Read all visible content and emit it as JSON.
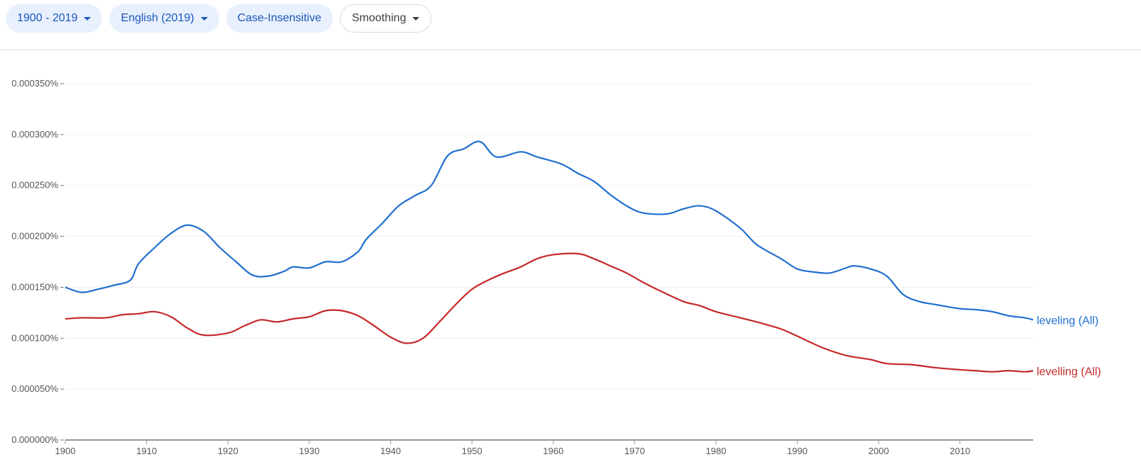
{
  "toolbar": {
    "year_range": "1900 - 2019",
    "corpus": "English (2019)",
    "case": "Case-Insensitive",
    "smoothing": "Smoothing"
  },
  "chart_data": {
    "type": "line",
    "xlabel": "",
    "ylabel": "",
    "xlim": [
      1900,
      2019
    ],
    "ylim": [
      0,
      0.00035
    ],
    "x_ticks": [
      "1900",
      "1910",
      "1920",
      "1930",
      "1940",
      "1950",
      "1960",
      "1970",
      "1980",
      "1990",
      "2000",
      "2010"
    ],
    "y_ticks": [
      "0.000000%",
      "0.000050%",
      "0.000100%",
      "0.000150%",
      "0.000200%",
      "0.000250%",
      "0.000300%",
      "0.000350%"
    ],
    "grid": true,
    "legend": "inline-right",
    "series": [
      {
        "name": "leveling (All)",
        "color": "#1f6fcf",
        "points": [
          [
            1900,
            0.00015
          ],
          [
            1902,
            0.000145
          ],
          [
            1904,
            0.000148
          ],
          [
            1906,
            0.000152
          ],
          [
            1908,
            0.000157
          ],
          [
            1909,
            0.000173
          ],
          [
            1911,
            0.000189
          ],
          [
            1913,
            0.000203
          ],
          [
            1915,
            0.000211
          ],
          [
            1917,
            0.000205
          ],
          [
            1919,
            0.000189
          ],
          [
            1921,
            0.000175
          ],
          [
            1923,
            0.000162
          ],
          [
            1925,
            0.000161
          ],
          [
            1927,
            0.000166
          ],
          [
            1928,
            0.00017
          ],
          [
            1930,
            0.000169
          ],
          [
            1932,
            0.000175
          ],
          [
            1934,
            0.000175
          ],
          [
            1936,
            0.000185
          ],
          [
            1937,
            0.000197
          ],
          [
            1939,
            0.000213
          ],
          [
            1941,
            0.00023
          ],
          [
            1943,
            0.00024
          ],
          [
            1945,
            0.00025
          ],
          [
            1947,
            0.000279
          ],
          [
            1949,
            0.000286
          ],
          [
            1951,
            0.000293
          ],
          [
            1953,
            0.000278
          ],
          [
            1956,
            0.000283
          ],
          [
            1958,
            0.000278
          ],
          [
            1961,
            0.000271
          ],
          [
            1963,
            0.000262
          ],
          [
            1965,
            0.000254
          ],
          [
            1967,
            0.000241
          ],
          [
            1969,
            0.00023
          ],
          [
            1971,
            0.000223
          ],
          [
            1974,
            0.000222
          ],
          [
            1976,
            0.000227
          ],
          [
            1978,
            0.00023
          ],
          [
            1980,
            0.000225
          ],
          [
            1983,
            0.000208
          ],
          [
            1985,
            0.000192
          ],
          [
            1988,
            0.000178
          ],
          [
            1990,
            0.000168
          ],
          [
            1992,
            0.000165
          ],
          [
            1994,
            0.000164
          ],
          [
            1996,
            0.000169
          ],
          [
            1997,
            0.000171
          ],
          [
            1999,
            0.000168
          ],
          [
            2001,
            0.000161
          ],
          [
            2003,
            0.000143
          ],
          [
            2005,
            0.000136
          ],
          [
            2007,
            0.000133
          ],
          [
            2010,
            0.000129
          ],
          [
            2012,
            0.000128
          ],
          [
            2014,
            0.000126
          ],
          [
            2016,
            0.000122
          ],
          [
            2018,
            0.00012
          ],
          [
            2019,
            0.000118
          ]
        ]
      },
      {
        "name": "levelling (All)",
        "color": "#c62828",
        "points": [
          [
            1900,
            0.000119
          ],
          [
            1902,
            0.00012
          ],
          [
            1905,
            0.00012
          ],
          [
            1907,
            0.000123
          ],
          [
            1909,
            0.000124
          ],
          [
            1911,
            0.000126
          ],
          [
            1913,
            0.000121
          ],
          [
            1915,
            0.00011
          ],
          [
            1917,
            0.000103
          ],
          [
            1920,
            0.000105
          ],
          [
            1922,
            0.000112
          ],
          [
            1924,
            0.000118
          ],
          [
            1926,
            0.000116
          ],
          [
            1928,
            0.000119
          ],
          [
            1930,
            0.000121
          ],
          [
            1932,
            0.000127
          ],
          [
            1934,
            0.000127
          ],
          [
            1936,
            0.000122
          ],
          [
            1938,
            0.000112
          ],
          [
            1940,
            0.000101
          ],
          [
            1942,
            9.5e-05
          ],
          [
            1944,
            0.0001
          ],
          [
            1946,
            0.000116
          ],
          [
            1948,
            0.000133
          ],
          [
            1950,
            0.000148
          ],
          [
            1952,
            0.000157
          ],
          [
            1954,
            0.000164
          ],
          [
            1956,
            0.00017
          ],
          [
            1958,
            0.000178
          ],
          [
            1960,
            0.000182
          ],
          [
            1963,
            0.000183
          ],
          [
            1965,
            0.000178
          ],
          [
            1967,
            0.000171
          ],
          [
            1969,
            0.000164
          ],
          [
            1971,
            0.000155
          ],
          [
            1973,
            0.000147
          ],
          [
            1976,
            0.000136
          ],
          [
            1978,
            0.000132
          ],
          [
            1980,
            0.000126
          ],
          [
            1983,
            0.00012
          ],
          [
            1985,
            0.000116
          ],
          [
            1988,
            0.000109
          ],
          [
            1990,
            0.000102
          ],
          [
            1993,
            9.1e-05
          ],
          [
            1996,
            8.3e-05
          ],
          [
            1999,
            7.9e-05
          ],
          [
            2001,
            7.5e-05
          ],
          [
            2004,
            7.4e-05
          ],
          [
            2007,
            7.1e-05
          ],
          [
            2010,
            6.9e-05
          ],
          [
            2012,
            6.8e-05
          ],
          [
            2014,
            6.7e-05
          ],
          [
            2016,
            6.8e-05
          ],
          [
            2018,
            6.7e-05
          ],
          [
            2019,
            6.8e-05
          ]
        ]
      }
    ]
  }
}
